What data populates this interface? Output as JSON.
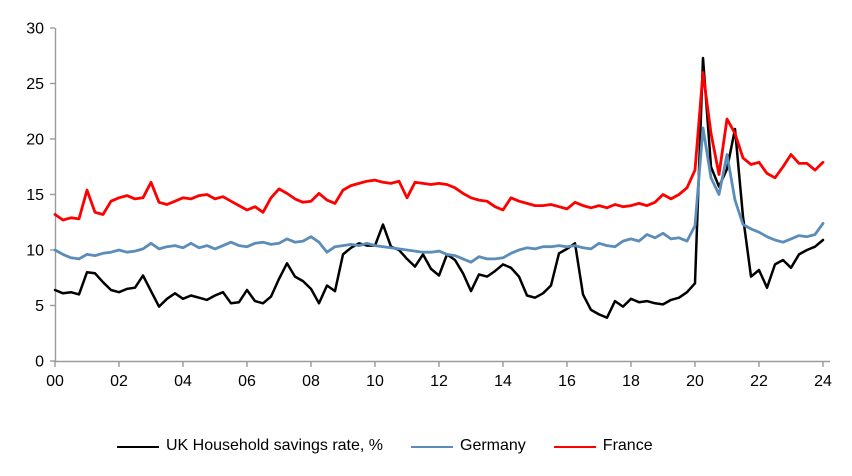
{
  "page": {
    "background": "#ffffff"
  },
  "chart_data": {
    "type": "line",
    "title": "",
    "frequency": "quarterly",
    "x_start_year": 2000,
    "x_step_years": 0.25,
    "x_axis": {
      "tick_labels": [
        "00",
        "02",
        "04",
        "06",
        "08",
        "10",
        "12",
        "14",
        "16",
        "18",
        "20",
        "22",
        "24"
      ],
      "tick_step_years": 2,
      "range_years": [
        2000,
        2024
      ]
    },
    "y_axis": {
      "ticks": [
        0,
        5,
        10,
        15,
        20,
        25,
        30
      ],
      "range": [
        0,
        30
      ]
    },
    "grid": false,
    "legend_position": "bottom",
    "axis_color": "#9b9b9b",
    "label_color": "#000000",
    "series": [
      {
        "name": "UK Household savings rate, %",
        "color": "#000000",
        "stroke_width": 2.5,
        "values": [
          6.4,
          6.1,
          6.2,
          6.0,
          8.0,
          7.9,
          7.1,
          6.4,
          6.2,
          6.5,
          6.6,
          7.7,
          6.3,
          4.9,
          5.6,
          6.1,
          5.6,
          5.9,
          5.7,
          5.5,
          5.9,
          6.2,
          5.2,
          5.3,
          6.4,
          5.4,
          5.2,
          5.8,
          7.4,
          8.8,
          7.6,
          7.2,
          6.5,
          5.2,
          6.8,
          6.3,
          9.6,
          10.2,
          10.6,
          10.4,
          10.4,
          12.3,
          10.3,
          10.0,
          9.2,
          8.5,
          9.6,
          8.3,
          7.7,
          9.6,
          9.1,
          7.9,
          6.3,
          7.8,
          7.6,
          8.1,
          8.7,
          8.4,
          7.6,
          5.9,
          5.7,
          6.1,
          6.8,
          9.7,
          10.1,
          10.6,
          6.0,
          4.6,
          4.2,
          3.9,
          5.4,
          4.9,
          5.6,
          5.3,
          5.4,
          5.2,
          5.1,
          5.5,
          5.7,
          6.2,
          7.0,
          27.3,
          17.5,
          15.7,
          17.3,
          20.9,
          13.0,
          7.6,
          8.2,
          6.6,
          8.7,
          9.1,
          8.4,
          9.6,
          10.0,
          10.3,
          10.9
        ]
      },
      {
        "name": "Germany",
        "color": "#5b8db8",
        "stroke_width": 2.8,
        "values": [
          10.0,
          9.6,
          9.3,
          9.2,
          9.6,
          9.5,
          9.7,
          9.8,
          10.0,
          9.8,
          9.9,
          10.1,
          10.6,
          10.1,
          10.3,
          10.4,
          10.2,
          10.6,
          10.2,
          10.4,
          10.1,
          10.4,
          10.7,
          10.4,
          10.3,
          10.6,
          10.7,
          10.5,
          10.6,
          11.0,
          10.7,
          10.8,
          11.2,
          10.7,
          9.8,
          10.3,
          10.4,
          10.5,
          10.4,
          10.6,
          10.4,
          10.3,
          10.2,
          10.1,
          10.0,
          9.9,
          9.8,
          9.8,
          9.9,
          9.6,
          9.5,
          9.2,
          8.9,
          9.4,
          9.2,
          9.2,
          9.3,
          9.7,
          10.0,
          10.2,
          10.1,
          10.3,
          10.3,
          10.4,
          10.3,
          10.4,
          10.2,
          10.1,
          10.6,
          10.4,
          10.3,
          10.8,
          11.0,
          10.8,
          11.4,
          11.1,
          11.5,
          11.0,
          11.1,
          10.8,
          12.2,
          21.0,
          16.5,
          15.0,
          18.6,
          14.5,
          12.3,
          11.9,
          11.6,
          11.2,
          10.9,
          10.7,
          11.0,
          11.3,
          11.2,
          11.4,
          12.4
        ]
      },
      {
        "name": "France",
        "color": "#fe0000",
        "stroke_width": 2.8,
        "values": [
          13.2,
          12.7,
          12.9,
          12.8,
          15.4,
          13.4,
          13.2,
          14.4,
          14.7,
          14.9,
          14.6,
          14.7,
          16.1,
          14.3,
          14.1,
          14.4,
          14.7,
          14.6,
          14.9,
          15.0,
          14.6,
          14.8,
          14.4,
          14.0,
          13.6,
          13.9,
          13.4,
          14.7,
          15.5,
          15.1,
          14.6,
          14.3,
          14.4,
          15.1,
          14.5,
          14.2,
          15.4,
          15.8,
          16.0,
          16.2,
          16.3,
          16.1,
          16.0,
          16.2,
          14.7,
          16.1,
          16.0,
          15.9,
          16.0,
          15.9,
          15.6,
          15.1,
          14.7,
          14.5,
          14.4,
          13.9,
          13.6,
          14.7,
          14.4,
          14.2,
          14.0,
          14.0,
          14.1,
          13.9,
          13.7,
          14.3,
          14.0,
          13.8,
          14.0,
          13.8,
          14.1,
          13.9,
          14.0,
          14.2,
          14.0,
          14.3,
          15.0,
          14.6,
          15.0,
          15.6,
          17.2,
          26.0,
          20.5,
          16.8,
          21.8,
          20.5,
          18.3,
          17.7,
          17.9,
          16.9,
          16.5,
          17.5,
          18.6,
          17.8,
          17.8,
          17.2,
          17.9
        ]
      }
    ]
  }
}
